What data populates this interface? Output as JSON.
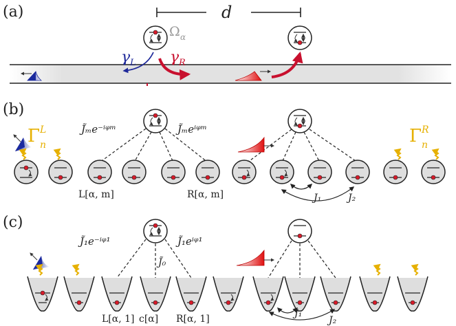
{
  "panels": {
    "a": "(a)",
    "b": "(b)",
    "c": "(c)"
  },
  "a": {
    "distance": "d",
    "omega": "Ω",
    "omega_sub": "α",
    "gamma_l": "γ",
    "gamma_l_sub": "L",
    "gamma_r": "γ",
    "gamma_r_sub": "R"
  },
  "b": {
    "coupling_left": "J̃ₘe⁻ⁱᵠᵐ",
    "coupling_right": "J̃ₘeⁱᵠᵐ",
    "gamma_l": "Γ",
    "gamma_l_sub": "n",
    "gamma_l_sup": "L",
    "gamma_r": "Γ",
    "gamma_r_sub": "n",
    "gamma_r_sup": "R",
    "label_l": "L[α, m]",
    "label_r": "R[α, m]",
    "j1": "J₁",
    "j2": "J₂"
  },
  "c": {
    "coupling_left": "J̃₁e⁻ⁱᵠ¹",
    "coupling_right": "J̃₁eⁱᵠ¹",
    "coupling_center": "J̃₀",
    "label_l": "L[α, 1]",
    "label_c": "c[α]",
    "label_r": "R[α, 1]",
    "j1": "J₁",
    "j2": "J₂"
  },
  "colors": {
    "red": "#c8102e",
    "blue": "#1f2a9a",
    "gold": "#e6b000",
    "gray": "#d9d9d9"
  }
}
